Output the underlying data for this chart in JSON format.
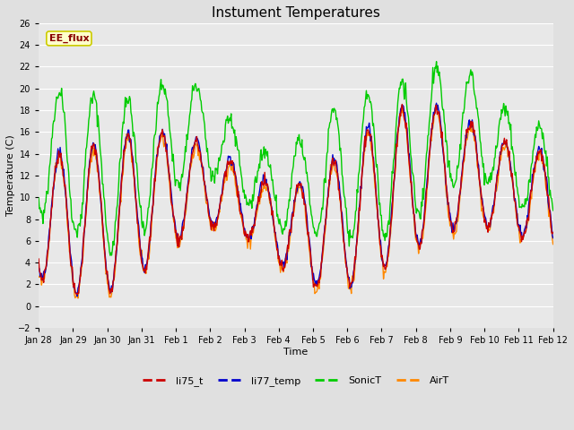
{
  "title": "Instument Temperatures",
  "xlabel": "Time",
  "ylabel": "Temperature (C)",
  "ylim": [
    -2,
    26
  ],
  "yticks": [
    -2,
    0,
    2,
    4,
    6,
    8,
    10,
    12,
    14,
    16,
    18,
    20,
    22,
    24,
    26
  ],
  "xtick_labels": [
    "Jan 28",
    "Jan 29",
    "Jan 30",
    "Jan 31",
    "Feb 1",
    "Feb 2",
    "Feb 3",
    "Feb 4",
    "Feb 5",
    "Feb 6",
    "Feb 7",
    "Feb 8",
    "Feb 9",
    "Feb 10",
    "Feb 11",
    "Feb 12"
  ],
  "bg_color": "#e0e0e0",
  "plot_bg_color": "#e8e8e8",
  "grid_color": "white",
  "annotation_text": "EE_flux",
  "annotation_bg": "#ffffcc",
  "annotation_border": "#cccc00",
  "lines": {
    "li75_t": {
      "color": "#cc0000",
      "lw": 1.0
    },
    "li77_temp": {
      "color": "#0000cc",
      "lw": 1.0
    },
    "SonicT": {
      "color": "#00cc00",
      "lw": 1.0
    },
    "AirT": {
      "color": "#ff8800",
      "lw": 1.0
    }
  },
  "title_fontsize": 11,
  "axis_fontsize": 8,
  "tick_fontsize": 7,
  "figwidth": 6.4,
  "figheight": 4.8,
  "dpi": 100
}
